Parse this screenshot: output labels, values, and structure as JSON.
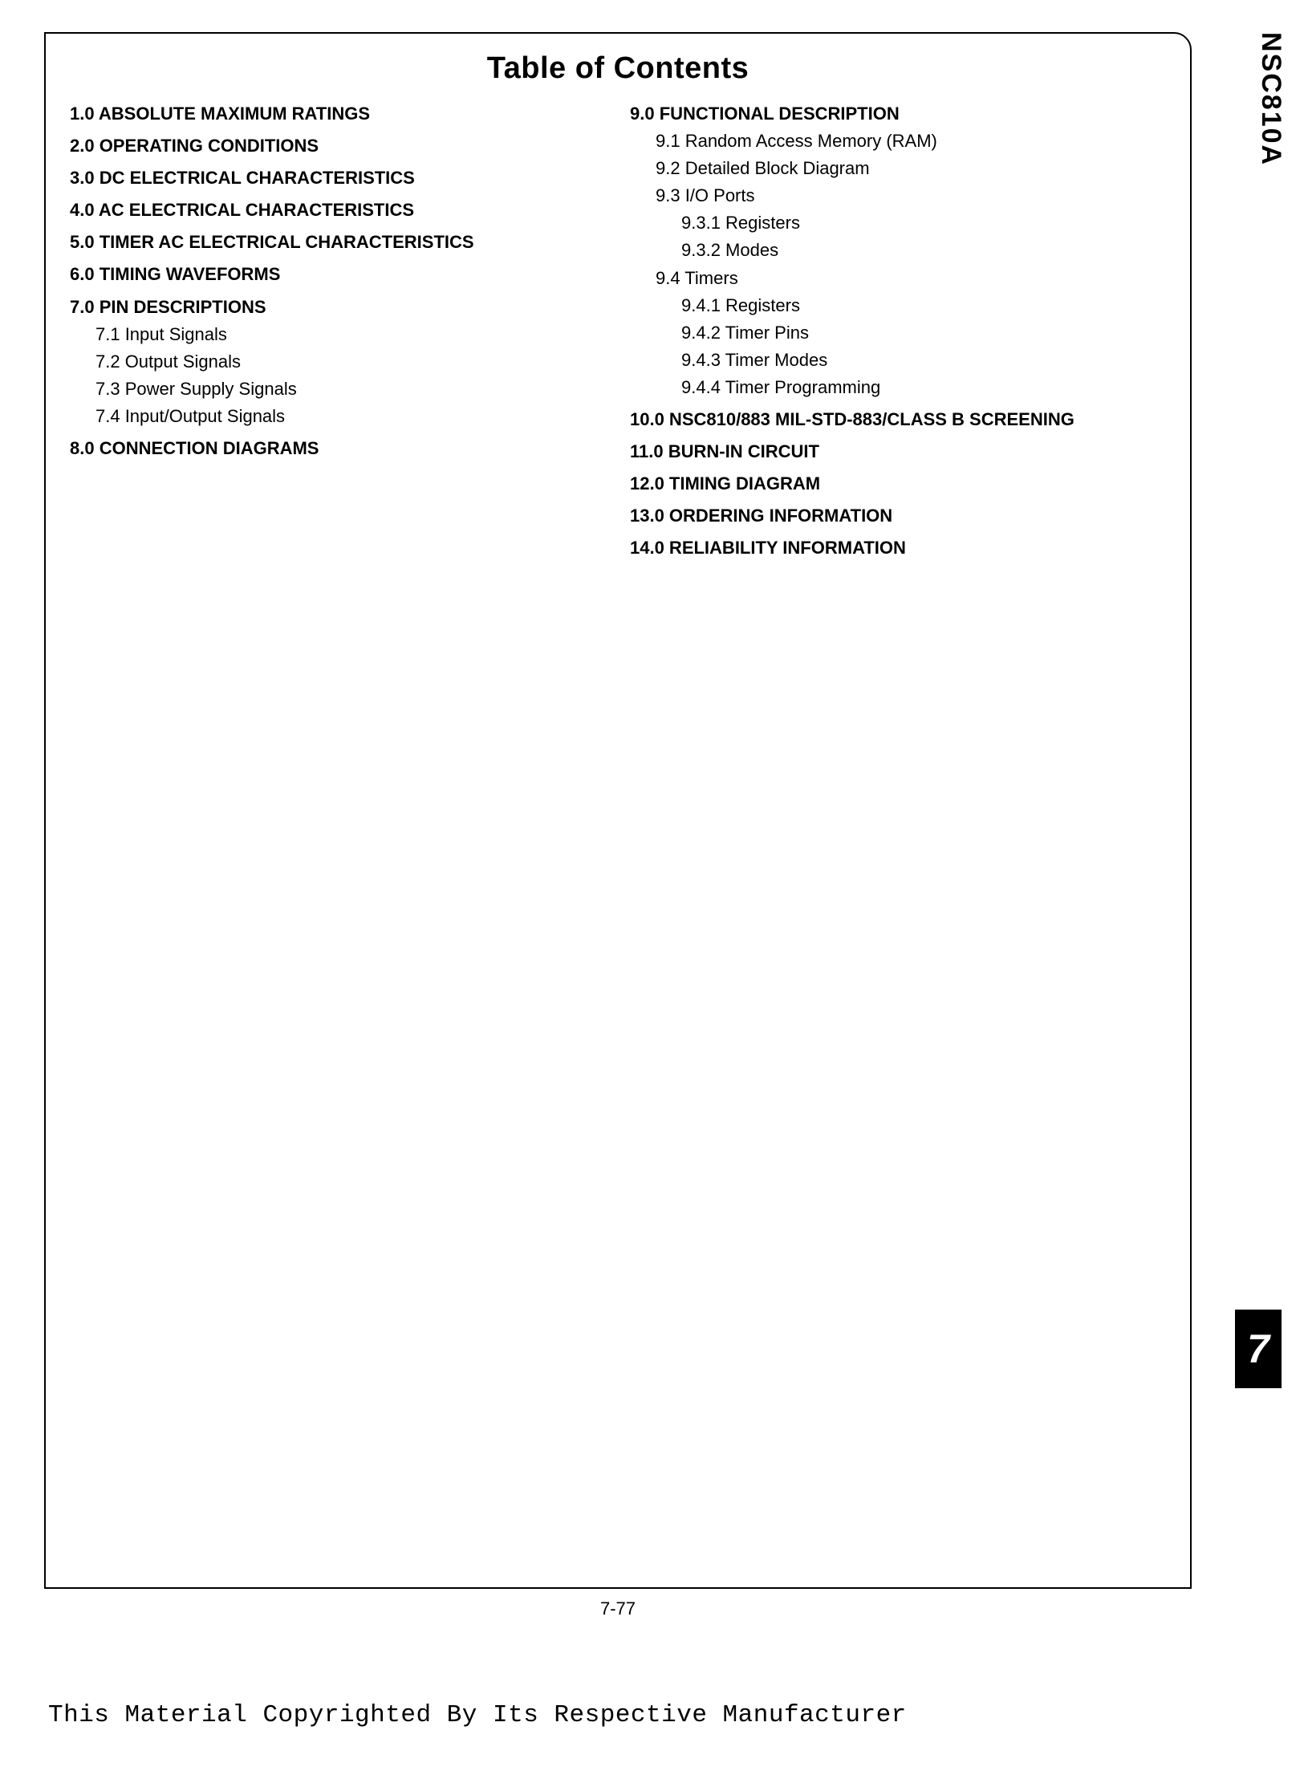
{
  "title": "Table of Contents",
  "side_label": "NSC810A",
  "tab_number": "7",
  "page_number": "7-77",
  "copyright": "This Material Copyrighted By Its Respective Manufacturer",
  "left_col": [
    {
      "level": "h1",
      "text": "1.0 ABSOLUTE MAXIMUM RATINGS"
    },
    {
      "level": "h1",
      "text": "2.0 OPERATING CONDITIONS"
    },
    {
      "level": "h1",
      "text": "3.0 DC ELECTRICAL CHARACTERISTICS"
    },
    {
      "level": "h1",
      "text": "4.0 AC ELECTRICAL CHARACTERISTICS"
    },
    {
      "level": "h1",
      "text": "5.0 TIMER AC ELECTRICAL CHARACTERISTICS"
    },
    {
      "level": "h1",
      "text": "6.0 TIMING WAVEFORMS"
    },
    {
      "level": "h1",
      "text": "7.0 PIN DESCRIPTIONS"
    },
    {
      "level": "sub1",
      "text": "7.1 Input Signals"
    },
    {
      "level": "sub1",
      "text": "7.2 Output Signals"
    },
    {
      "level": "sub1",
      "text": "7.3 Power Supply Signals"
    },
    {
      "level": "sub1",
      "text": "7.4 Input/Output Signals"
    },
    {
      "level": "h1",
      "text": "8.0 CONNECTION DIAGRAMS"
    }
  ],
  "right_col": [
    {
      "level": "h1",
      "text": "9.0 FUNCTIONAL DESCRIPTION"
    },
    {
      "level": "sub1",
      "text": "9.1 Random Access Memory (RAM)"
    },
    {
      "level": "sub1",
      "text": "9.2 Detailed Block Diagram"
    },
    {
      "level": "sub1",
      "text": "9.3 I/O Ports"
    },
    {
      "level": "sub2",
      "text": "9.3.1 Registers"
    },
    {
      "level": "sub2",
      "text": "9.3.2 Modes"
    },
    {
      "level": "sub1",
      "text": "9.4 Timers"
    },
    {
      "level": "sub2",
      "text": "9.4.1 Registers"
    },
    {
      "level": "sub2",
      "text": "9.4.2 Timer Pins"
    },
    {
      "level": "sub2",
      "text": "9.4.3 Timer Modes"
    },
    {
      "level": "sub2",
      "text": "9.4.4 Timer Programming"
    },
    {
      "level": "h1",
      "text": "10.0 NSC810/883 MIL-STD-883/CLASS B SCREENING"
    },
    {
      "level": "h1",
      "text": "11.0 BURN-IN CIRCUIT"
    },
    {
      "level": "h1",
      "text": "12.0 TIMING DIAGRAM"
    },
    {
      "level": "h1",
      "text": "13.0 ORDERING INFORMATION"
    },
    {
      "level": "h1",
      "text": "14.0 RELIABILITY INFORMATION"
    }
  ]
}
